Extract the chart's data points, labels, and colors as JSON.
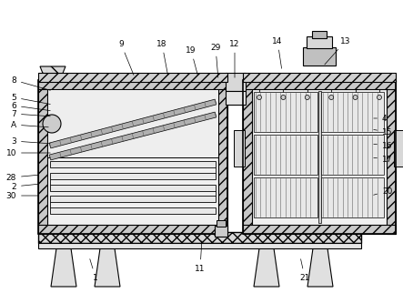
{
  "bg_color": "#ffffff",
  "figsize": [
    4.43,
    3.22
  ],
  "dpi": 100,
  "labels_data": [
    [
      "8",
      18,
      88,
      58,
      100
    ],
    [
      "5",
      18,
      107,
      58,
      115
    ],
    [
      "6",
      18,
      116,
      58,
      122
    ],
    [
      "7",
      18,
      125,
      58,
      128
    ],
    [
      "A",
      18,
      137,
      56,
      140
    ],
    [
      "3",
      18,
      155,
      58,
      158
    ],
    [
      "10",
      18,
      168,
      58,
      168
    ],
    [
      "28",
      18,
      195,
      45,
      192
    ],
    [
      "2",
      18,
      205,
      45,
      202
    ],
    [
      "30",
      18,
      215,
      45,
      215
    ],
    [
      "9",
      133,
      48,
      148,
      85
    ],
    [
      "18",
      178,
      48,
      185,
      85
    ],
    [
      "19",
      210,
      55,
      218,
      85
    ],
    [
      "29",
      237,
      52,
      240,
      88
    ],
    [
      "12",
      258,
      48,
      258,
      88
    ],
    [
      "14",
      305,
      45,
      310,
      78
    ],
    [
      "13",
      380,
      45,
      355,
      73
    ],
    [
      "4",
      420,
      130,
      408,
      130
    ],
    [
      "15",
      420,
      145,
      408,
      142
    ],
    [
      "16",
      420,
      160,
      408,
      158
    ],
    [
      "17",
      420,
      175,
      408,
      173
    ],
    [
      "20",
      420,
      210,
      408,
      215
    ],
    [
      "1",
      105,
      305,
      98,
      282
    ],
    [
      "11",
      220,
      295,
      222,
      262
    ],
    [
      "21",
      335,
      305,
      330,
      282
    ]
  ]
}
